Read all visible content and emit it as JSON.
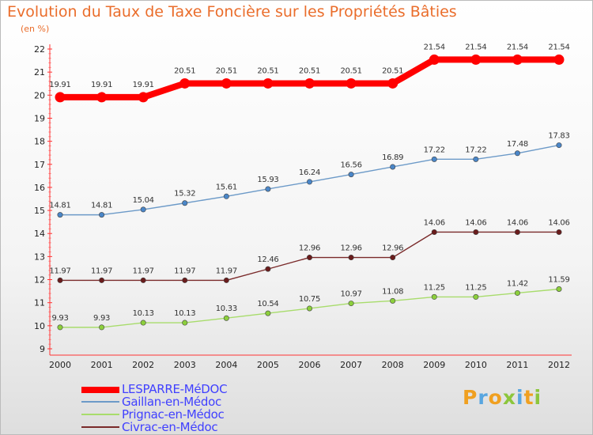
{
  "chart_data": {
    "type": "line",
    "title": "Evolution du Taux de Taxe Foncière sur les Propriétés Bâties",
    "unit_label": "(en %)",
    "categories": [
      "2000",
      "2001",
      "2002",
      "2003",
      "2004",
      "2005",
      "2006",
      "2007",
      "2008",
      "2009",
      "2010",
      "2011",
      "2012"
    ],
    "ylim": [
      9,
      22
    ],
    "yticks": [
      "9",
      "10",
      "11",
      "12",
      "13",
      "14",
      "15",
      "16",
      "17",
      "18",
      "19",
      "20",
      "21",
      "22"
    ],
    "grid": false,
    "legend_position": "bottom-left",
    "series": [
      {
        "name": "LESPARRE-MéDOC",
        "color": "#ff0000",
        "point_color": "#ff0000",
        "emphasis": true,
        "values": [
          19.91,
          19.91,
          19.91,
          20.51,
          20.51,
          20.51,
          20.51,
          20.51,
          20.51,
          21.54,
          21.54,
          21.54,
          21.54
        ],
        "labels": [
          "19.91",
          "19.91",
          "19.91",
          "20.51",
          "20.51",
          "20.51",
          "20.51",
          "20.51",
          "20.51",
          "21.54",
          "21.54",
          "21.54",
          "21.54"
        ]
      },
      {
        "name": "Gaillan-en-Médoc",
        "color": "#6c9ac8",
        "point_color": "#4a86c8",
        "emphasis": false,
        "values": [
          14.81,
          14.81,
          15.04,
          15.32,
          15.61,
          15.93,
          16.24,
          16.56,
          16.89,
          17.22,
          17.22,
          17.48,
          17.83
        ],
        "labels": [
          "14.81",
          "14.81",
          "15.04",
          "15.32",
          "15.61",
          "15.93",
          "16.24",
          "16.56",
          "16.89",
          "17.22",
          "17.22",
          "17.48",
          "17.83"
        ]
      },
      {
        "name": "Prignac-en-Médoc",
        "color": "#a8dc6c",
        "point_color": "#8ccf3c",
        "emphasis": false,
        "values": [
          9.93,
          9.93,
          10.13,
          10.13,
          10.33,
          10.54,
          10.75,
          10.97,
          11.08,
          11.25,
          11.25,
          11.42,
          11.59
        ],
        "labels": [
          "9.93",
          "9.93",
          "10.13",
          "10.13",
          "10.33",
          "10.54",
          "10.75",
          "10.97",
          "11.08",
          "11.25",
          "11.25",
          "11.42",
          "11.59"
        ]
      },
      {
        "name": "Civrac-en-Médoc",
        "color": "#7a2a2a",
        "point_color": "#6a1c1c",
        "emphasis": false,
        "values": [
          11.97,
          11.97,
          11.97,
          11.97,
          11.97,
          12.46,
          12.96,
          12.96,
          12.96,
          14.06,
          14.06,
          14.06,
          14.06
        ],
        "labels": [
          "11.97",
          "11.97",
          "11.97",
          "11.97",
          "11.97",
          "12.46",
          "12.96",
          "12.96",
          "12.96",
          "14.06",
          "14.06",
          "14.06",
          "14.06"
        ]
      }
    ]
  },
  "logo": {
    "text": "Proxiti",
    "colors": [
      "#f0a020",
      "#58a6e0",
      "#f0a020",
      "#8cc63c",
      "#58a6e0",
      "#f0a020",
      "#8cc63c"
    ]
  }
}
